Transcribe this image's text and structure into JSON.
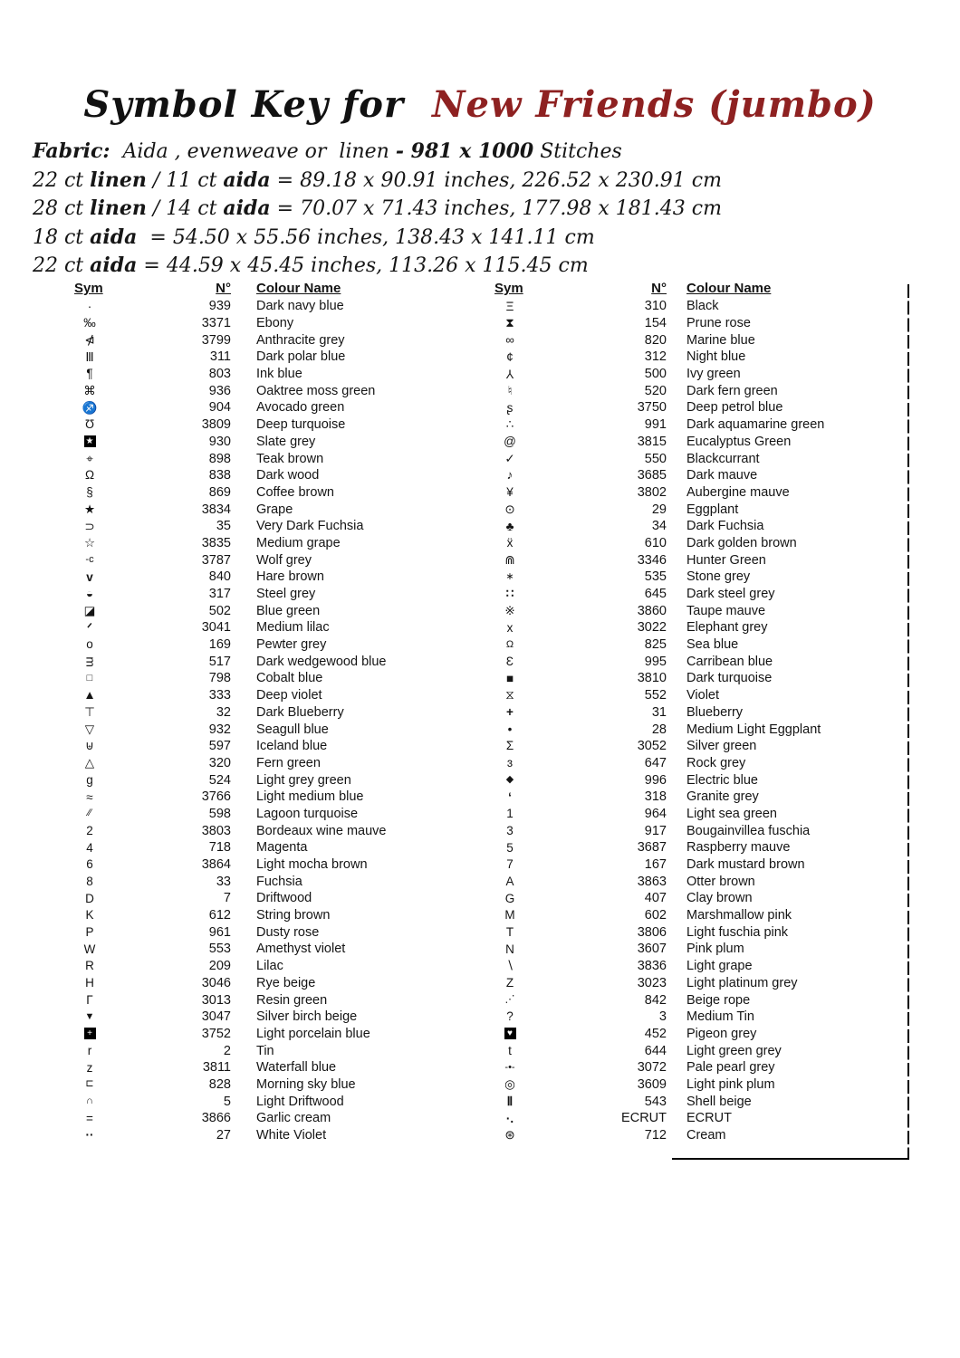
{
  "title": {
    "prefix": "Symbol Key for",
    "pattern_name": "New Friends (jumbo)",
    "accent_color": "#8e2121"
  },
  "fabric_lines": [
    [
      {
        "t": "Fabric:",
        "b": true
      },
      {
        "t": "  Aida , evenweave or  linen ",
        "b": false
      },
      {
        "t": "- 981 x 1000",
        "b": true
      },
      {
        "t": " Stitches",
        "b": false
      }
    ],
    [
      {
        "t": "22 ct ",
        "b": false
      },
      {
        "t": "linen",
        "b": true
      },
      {
        "t": " / 11 ct ",
        "b": false
      },
      {
        "t": "aida",
        "b": true
      },
      {
        "t": " = 89.18 x 90.91 inches, 226.52 x 230.91 cm",
        "b": false
      }
    ],
    [
      {
        "t": "28 ct ",
        "b": false
      },
      {
        "t": "linen",
        "b": true
      },
      {
        "t": " / 14 ct ",
        "b": false
      },
      {
        "t": "aida",
        "b": true
      },
      {
        "t": " = 70.07 x 71.43 inches, 177.98 x 181.43 cm",
        "b": false
      }
    ],
    [
      {
        "t": "18 ct ",
        "b": false
      },
      {
        "t": "aida",
        "b": true
      },
      {
        "t": "  = 54.50 x 55.56 inches, 138.43 x 141.11 cm",
        "b": false
      }
    ],
    [
      {
        "t": "22 ct ",
        "b": false
      },
      {
        "t": "aida",
        "b": true
      },
      {
        "t": " = 44.59 x 45.45 inches, 113.26 x 115.45 cm",
        "b": false
      }
    ]
  ],
  "tables": [
    {
      "headers": {
        "sym": "Sym",
        "num": "N°",
        "name": "Colour Name"
      },
      "rows": [
        {
          "sym": "·",
          "num": "939",
          "name": "Dark navy blue"
        },
        {
          "sym": "‰",
          "num": "3371",
          "name": "Ebony"
        },
        {
          "sym": "⋪",
          "num": "3799",
          "name": "Anthracite grey"
        },
        {
          "sym": "Ⅲ",
          "num": "311",
          "name": "Dark polar blue"
        },
        {
          "sym": "¶",
          "num": "803",
          "name": "Ink blue"
        },
        {
          "sym": "⌘",
          "num": "936",
          "name": "Oaktree moss green"
        },
        {
          "sym": "♐",
          "num": "904",
          "name": "Avocado green"
        },
        {
          "sym": "Ʊ",
          "num": "3809",
          "name": "Deep turquoise"
        },
        {
          "sym": "★",
          "num": "930",
          "name": "Slate grey",
          "style": "box"
        },
        {
          "sym": "⌖",
          "num": "898",
          "name": "Teak brown"
        },
        {
          "sym": "Ω",
          "num": "838",
          "name": "Dark wood"
        },
        {
          "sym": "§",
          "num": "869",
          "name": "Coffee brown"
        },
        {
          "sym": "★",
          "num": "3834",
          "name": "Grape"
        },
        {
          "sym": "⊃",
          "num": "35",
          "name": "Very Dark Fuchsia"
        },
        {
          "sym": "☆",
          "num": "3835",
          "name": "Medium grape"
        },
        {
          "sym": "-c",
          "num": "3787",
          "name": "Wolf grey",
          "style": "small"
        },
        {
          "sym": "v",
          "num": "840",
          "name": "Hare brown",
          "style": "bold"
        },
        {
          "sym": "◒",
          "num": "317",
          "name": "Steel grey"
        },
        {
          "sym": "◪",
          "num": "502",
          "name": "Blue green"
        },
        {
          "sym": "ᐟ",
          "num": "3041",
          "name": "Medium lilac",
          "style": "bold"
        },
        {
          "sym": "o",
          "num": "169",
          "name": "Pewter grey"
        },
        {
          "sym": "ᴟ",
          "num": "517",
          "name": "Dark wedgewood blue"
        },
        {
          "sym": "□",
          "num": "798",
          "name": "Cobalt blue",
          "style": "small"
        },
        {
          "sym": "▲",
          "num": "333",
          "name": "Deep violet"
        },
        {
          "sym": "⊤",
          "num": "32",
          "name": "Dark Blueberry"
        },
        {
          "sym": "▽",
          "num": "932",
          "name": "Seagull blue"
        },
        {
          "sym": "⊎",
          "num": "597",
          "name": "Iceland blue"
        },
        {
          "sym": "△",
          "num": "320",
          "name": "Fern green"
        },
        {
          "sym": "g",
          "num": "524",
          "name": "Light grey green"
        },
        {
          "sym": "≈",
          "num": "3766",
          "name": "Light medium blue"
        },
        {
          "sym": "∕∕",
          "num": "598",
          "name": "Lagoon turquoise",
          "style": "small"
        },
        {
          "sym": "2",
          "num": "3803",
          "name": "Bordeaux wine mauve"
        },
        {
          "sym": "4",
          "num": "718",
          "name": "Magenta"
        },
        {
          "sym": "6",
          "num": "3864",
          "name": "Light mocha brown"
        },
        {
          "sym": "8",
          "num": "33",
          "name": "Fuchsia"
        },
        {
          "sym": "D",
          "num": "7",
          "name": "Driftwood"
        },
        {
          "sym": "K",
          "num": "612",
          "name": "String brown"
        },
        {
          "sym": "P",
          "num": "961",
          "name": "Dusty rose"
        },
        {
          "sym": "W",
          "num": "553",
          "name": "Amethyst violet"
        },
        {
          "sym": "R",
          "num": "209",
          "name": "Lilac"
        },
        {
          "sym": "H",
          "num": "3046",
          "name": "Rye beige"
        },
        {
          "sym": "Γ",
          "num": "3013",
          "name": "Resin green"
        },
        {
          "sym": "▼",
          "num": "3047",
          "name": "Silver birch beige",
          "style": "small"
        },
        {
          "sym": "+",
          "num": "3752",
          "name": "Light porcelain blue",
          "style": "box"
        },
        {
          "sym": "r",
          "num": "2",
          "name": "Tin"
        },
        {
          "sym": "z",
          "num": "3811",
          "name": "Waterfall blue"
        },
        {
          "sym": "⊏",
          "num": "828",
          "name": "Morning sky blue",
          "style": "small"
        },
        {
          "sym": "∩",
          "num": "5",
          "name": "Light Driftwood",
          "style": "small"
        },
        {
          "sym": "=",
          "num": "3866",
          "name": "Garlic cream"
        },
        {
          "sym": "··",
          "num": "27",
          "name": "White Violet",
          "style": "bold"
        }
      ]
    },
    {
      "headers": {
        "sym": "Sym",
        "num": "N°",
        "name": "Colour Name"
      },
      "rows": [
        {
          "sym": "Ξ",
          "num": "310",
          "name": "Black"
        },
        {
          "sym": "⧗",
          "num": "154",
          "name": "Prune rose"
        },
        {
          "sym": "∞",
          "num": "820",
          "name": "Marine blue"
        },
        {
          "sym": "¢",
          "num": "312",
          "name": "Night blue"
        },
        {
          "sym": "Y",
          "num": "500",
          "name": "Ivy green",
          "style": "rot180"
        },
        {
          "sym": "♮",
          "num": "520",
          "name": "Dark fern green"
        },
        {
          "sym": "ʂ",
          "num": "3750",
          "name": "Deep petrol blue"
        },
        {
          "sym": "∴",
          "num": "991",
          "name": "Dark aquamarine green"
        },
        {
          "sym": "@",
          "num": "3815",
          "name": "Eucalyptus Green"
        },
        {
          "sym": "✓",
          "num": "550",
          "name": "Blackcurrant"
        },
        {
          "sym": "♪",
          "num": "3685",
          "name": "Dark mauve"
        },
        {
          "sym": "¥",
          "num": "3802",
          "name": "Aubergine mauve"
        },
        {
          "sym": "⊙",
          "num": "29",
          "name": "Eggplant"
        },
        {
          "sym": "♣",
          "num": "34",
          "name": "Dark Fuchsia"
        },
        {
          "sym": "ẍ",
          "num": "610",
          "name": "Dark golden brown"
        },
        {
          "sym": "⋒",
          "num": "3346",
          "name": "Hunter Green"
        },
        {
          "sym": "∗",
          "num": "535",
          "name": "Stone grey",
          "style": "small"
        },
        {
          "sym": "∷",
          "num": "645",
          "name": "Dark steel grey",
          "style": "bold"
        },
        {
          "sym": "※",
          "num": "3860",
          "name": "Taupe mauve"
        },
        {
          "sym": "x",
          "num": "3022",
          "name": "Elephant grey"
        },
        {
          "sym": "Ω",
          "num": "825",
          "name": "Sea blue",
          "style": "small"
        },
        {
          "sym": "Ɛ",
          "num": "995",
          "name": "Carribean blue"
        },
        {
          "sym": "■",
          "num": "3810",
          "name": "Dark turquoise"
        },
        {
          "sym": "⧖",
          "num": "552",
          "name": "Violet"
        },
        {
          "sym": "+",
          "num": "31",
          "name": "Blueberry",
          "style": "bold"
        },
        {
          "sym": "•",
          "num": "28",
          "name": "Medium Light Eggplant"
        },
        {
          "sym": "Σ",
          "num": "3052",
          "name": "Silver green"
        },
        {
          "sym": "ɜ",
          "num": "647",
          "name": "Rock grey"
        },
        {
          "sym": "◆",
          "num": "996",
          "name": "Electric blue",
          "style": "small"
        },
        {
          "sym": "ʻ",
          "num": "318",
          "name": "Granite grey",
          "style": "bold"
        },
        {
          "sym": "1",
          "num": "964",
          "name": "Light sea green"
        },
        {
          "sym": "3",
          "num": "917",
          "name": "Bougainvillea fuschia"
        },
        {
          "sym": "5",
          "num": "3687",
          "name": "Raspberry mauve"
        },
        {
          "sym": "7",
          "num": "167",
          "name": "Dark mustard brown"
        },
        {
          "sym": "A",
          "num": "3863",
          "name": "Otter brown"
        },
        {
          "sym": "G",
          "num": "407",
          "name": "Clay brown"
        },
        {
          "sym": "M",
          "num": "602",
          "name": "Marshmallow pink"
        },
        {
          "sym": "T",
          "num": "3806",
          "name": "Light fuschia pink"
        },
        {
          "sym": "N",
          "num": "3607",
          "name": "Pink plum"
        },
        {
          "sym": "∖",
          "num": "3836",
          "name": "Light grape"
        },
        {
          "sym": "Z",
          "num": "3023",
          "name": "Light platinum grey"
        },
        {
          "sym": "⋰",
          "num": "842",
          "name": "Beige rope",
          "style": "small"
        },
        {
          "sym": "?",
          "num": "3",
          "name": "Medium Tin"
        },
        {
          "sym": "♥",
          "num": "452",
          "name": "Pigeon grey",
          "style": "box"
        },
        {
          "sym": "t",
          "num": "644",
          "name": "Light green grey"
        },
        {
          "sym": "-•-",
          "num": "3072",
          "name": "Pale pearl grey",
          "style": "small"
        },
        {
          "sym": "◎",
          "num": "3609",
          "name": "Light pink plum"
        },
        {
          "sym": "Ⅱ",
          "num": "543",
          "name": "Shell beige",
          "style": "bold"
        },
        {
          "sym": "·.",
          "num": "ECRUT",
          "name": "ECRUT",
          "style": "bold"
        },
        {
          "sym": "⊛",
          "num": "712",
          "name": "Cream"
        }
      ]
    }
  ]
}
